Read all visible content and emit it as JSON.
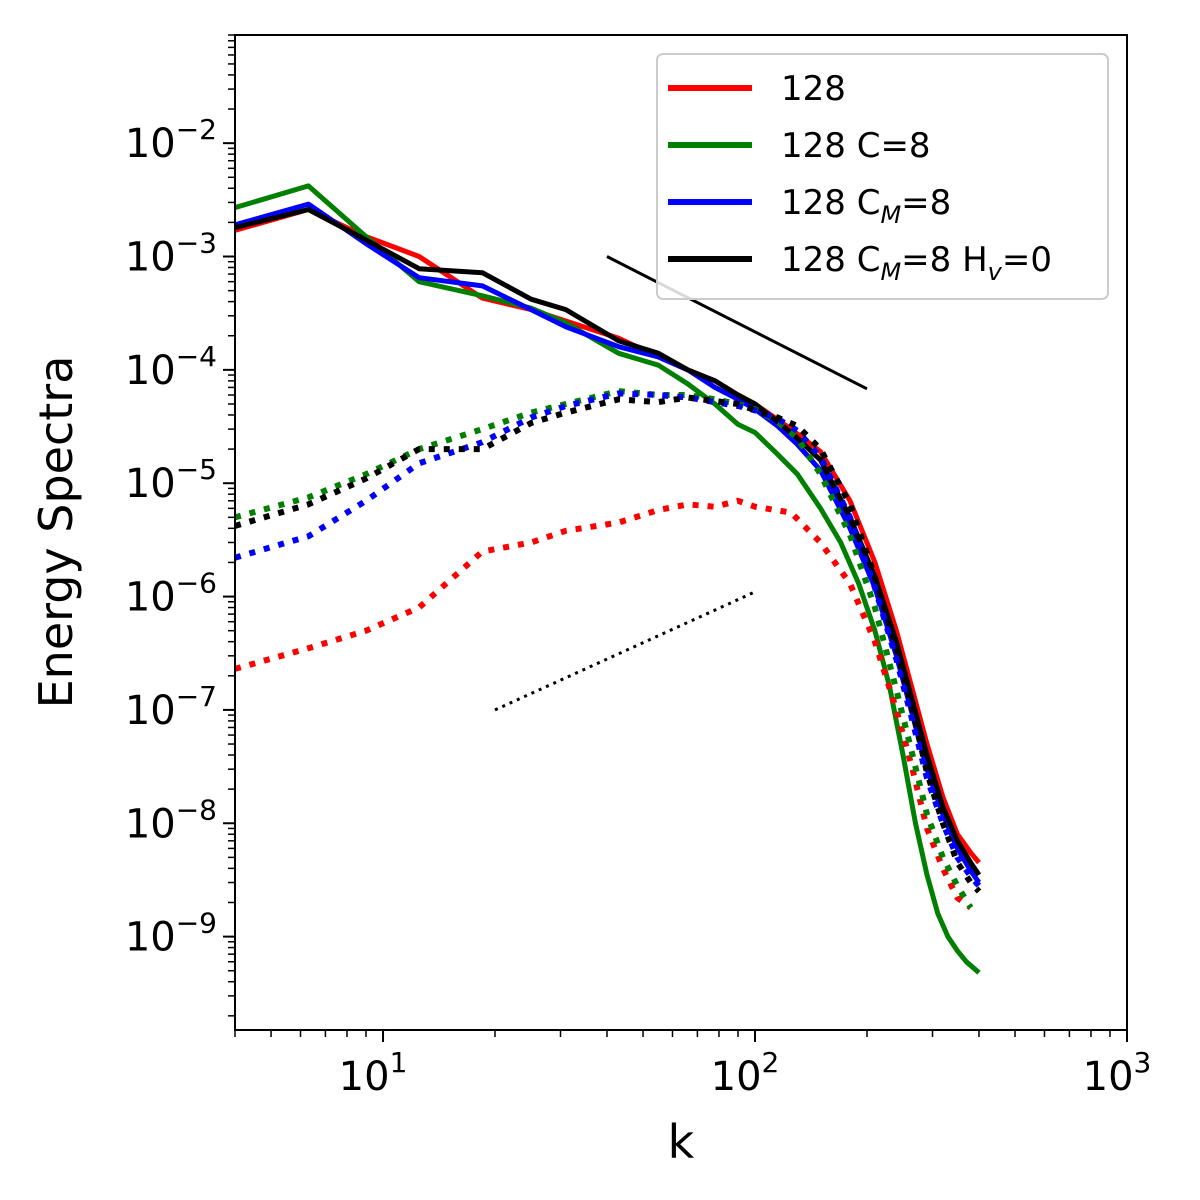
{
  "chart_data": {
    "type": "line",
    "xscale": "log",
    "yscale": "log",
    "xlabel": "k",
    "ylabel": "Energy Spectra",
    "xlim": [
      4,
      1000
    ],
    "ylim": [
      1.5e-10,
      0.09
    ],
    "legend_position": "top-right",
    "x_ticks": [
      {
        "value": 10,
        "base": "10",
        "exp": "1"
      },
      {
        "value": 100,
        "base": "10",
        "exp": "2"
      },
      {
        "value": 1000,
        "base": "10",
        "exp": "3"
      }
    ],
    "y_ticks": [
      {
        "value": 1e-09,
        "base": "10",
        "exp": "−9"
      },
      {
        "value": 1e-08,
        "base": "10",
        "exp": "−8"
      },
      {
        "value": 1e-07,
        "base": "10",
        "exp": "−7"
      },
      {
        "value": 1e-06,
        "base": "10",
        "exp": "−6"
      },
      {
        "value": 1e-05,
        "base": "10",
        "exp": "−5"
      },
      {
        "value": 0.0001,
        "base": "10",
        "exp": "−4"
      },
      {
        "value": 0.001,
        "base": "10",
        "exp": "−3"
      },
      {
        "value": 0.01,
        "base": "10",
        "exp": "−2"
      }
    ],
    "legend": [
      {
        "label": "128",
        "sub": "",
        "suffix": "",
        "color": "#ff0000"
      },
      {
        "label": "128 C=8",
        "sub": "",
        "suffix": "",
        "color": "#008000"
      },
      {
        "label": "128 C",
        "sub": "M",
        "suffix": "=8",
        "color": "#0000ff"
      },
      {
        "label": "128 C",
        "sub": "M",
        "suffix": "=8 H",
        "sub2": "v",
        "suffix2": "=0",
        "color": "#000000"
      }
    ],
    "series": [
      {
        "name": "128",
        "color": "#ff0000",
        "style": "solid",
        "x": [
          4,
          6.3,
          9,
          12.5,
          18.5,
          25,
          31,
          43,
          55,
          66,
          78,
          90,
          100,
          125,
          150,
          180,
          210,
          240,
          265,
          290,
          320,
          350,
          380,
          400
        ],
        "y": [
          0.0017,
          0.0026,
          0.0015,
          0.001,
          0.00043,
          0.00034,
          0.00027,
          0.00019,
          0.00013,
          0.0001,
          8e-05,
          6e-05,
          5e-05,
          3e-05,
          1.9e-05,
          7e-06,
          2e-06,
          5e-07,
          1.5e-07,
          5e-08,
          1.7e-08,
          8e-09,
          5.5e-09,
          4.5e-09
        ]
      },
      {
        "name": "128 C=8",
        "color": "#008000",
        "style": "solid",
        "x": [
          4,
          6.3,
          9,
          12.5,
          18.5,
          25,
          31,
          43,
          55,
          66,
          78,
          90,
          100,
          115,
          130,
          150,
          170,
          190,
          210,
          230,
          250,
          270,
          290,
          310,
          330,
          350,
          370,
          400
        ],
        "y": [
          0.0027,
          0.0042,
          0.0015,
          0.0006,
          0.00045,
          0.00035,
          0.00026,
          0.00014,
          0.00011,
          7.5e-05,
          5e-05,
          3.3e-05,
          2.8e-05,
          1.8e-05,
          1.2e-05,
          6e-06,
          3e-06,
          1.3e-06,
          5e-07,
          1.6e-07,
          4e-08,
          1e-08,
          3.5e-09,
          1.6e-09,
          1e-09,
          7.5e-10,
          6e-10,
          4.8e-10
        ]
      },
      {
        "name": "128 C_M=8",
        "color": "#0000ff",
        "style": "solid",
        "x": [
          4,
          6.3,
          9,
          12.5,
          18.5,
          25,
          31,
          43,
          55,
          66,
          78,
          90,
          100,
          115,
          130,
          150,
          180,
          210,
          240,
          265,
          290,
          320,
          350,
          380,
          400
        ],
        "y": [
          0.0019,
          0.0029,
          0.0013,
          0.00065,
          0.00055,
          0.00034,
          0.00024,
          0.00016,
          0.00013,
          0.0001,
          7e-05,
          5.5e-05,
          4.5e-05,
          3.2e-05,
          2.2e-05,
          1.3e-05,
          4e-06,
          1.2e-06,
          3e-07,
          9e-08,
          3e-08,
          1.2e-08,
          6e-09,
          3.8e-09,
          3e-09
        ]
      },
      {
        "name": "128 C_M=8 H_v=0",
        "color": "#000000",
        "style": "solid",
        "x": [
          4,
          6.3,
          9,
          12.5,
          18.5,
          25,
          31,
          43,
          55,
          66,
          78,
          90,
          100,
          115,
          130,
          150,
          180,
          210,
          240,
          265,
          290,
          320,
          350,
          380,
          400
        ],
        "y": [
          0.0018,
          0.0026,
          0.0014,
          0.00078,
          0.00072,
          0.00042,
          0.00034,
          0.00018,
          0.00014,
          0.0001,
          8e-05,
          6e-05,
          5e-05,
          3.5e-05,
          2.5e-05,
          1.6e-05,
          5e-06,
          1.5e-06,
          4e-07,
          1.2e-07,
          4e-08,
          1.4e-08,
          7e-09,
          4.5e-09,
          3.5e-09
        ]
      },
      {
        "name": "128 (dotted)",
        "color": "#ff0000",
        "style": "dotted",
        "x": [
          4,
          6.3,
          9,
          12.5,
          18.5,
          25,
          31,
          43,
          55,
          66,
          78,
          90,
          100,
          125,
          150,
          180,
          210,
          240,
          265,
          290,
          320,
          350,
          380
        ],
        "y": [
          2.3e-07,
          3.5e-07,
          5e-07,
          8e-07,
          2.5e-06,
          3e-06,
          3.8e-06,
          4.5e-06,
          5.8e-06,
          6.5e-06,
          6.2e-06,
          7e-06,
          6.2e-06,
          5.5e-06,
          3e-06,
          1.3e-06,
          4e-07,
          1e-07,
          3e-08,
          9e-09,
          4e-09,
          2.2e-09,
          1.8e-09
        ]
      },
      {
        "name": "128 C=8 (dotted)",
        "color": "#008000",
        "style": "dotted",
        "x": [
          4,
          6.3,
          9,
          12.5,
          18.5,
          25,
          31,
          43,
          55,
          66,
          78,
          90,
          100,
          115,
          130,
          150,
          180,
          210,
          240,
          265,
          290,
          320,
          350,
          380
        ],
        "y": [
          5e-06,
          7.5e-06,
          1.2e-05,
          2e-05,
          3e-05,
          4.2e-05,
          5e-05,
          6.5e-05,
          6e-05,
          6e-05,
          5.5e-05,
          5e-05,
          4.5e-05,
          3.5e-05,
          2.5e-05,
          1.2e-05,
          3.5e-06,
          8e-07,
          1.5e-07,
          4e-08,
          1.2e-08,
          5e-09,
          2.8e-09,
          1.8e-09
        ]
      },
      {
        "name": "128 C_M=8 (dotted)",
        "color": "#0000ff",
        "style": "dotted",
        "x": [
          4,
          6.3,
          9,
          12.5,
          18.5,
          25,
          31,
          43,
          55,
          66,
          78,
          90,
          100,
          115,
          130,
          150,
          180,
          210,
          240,
          265,
          290,
          320,
          350,
          380,
          400
        ],
        "y": [
          2.2e-06,
          3.4e-06,
          7e-06,
          1.5e-05,
          2.3e-05,
          3.8e-05,
          4.8e-05,
          6.2e-05,
          6e-05,
          5.7e-05,
          5.2e-05,
          4.8e-05,
          4.4e-05,
          3.7e-05,
          2.9e-05,
          1.7e-05,
          5e-06,
          1.2e-06,
          2.8e-07,
          8e-08,
          2.5e-08,
          1e-08,
          5e-09,
          3.4e-09,
          2.8e-09
        ]
      },
      {
        "name": "128 C_M=8 H_v=0 (dotted)",
        "color": "#000000",
        "style": "dotted",
        "x": [
          4,
          6.3,
          9,
          12.5,
          18.5,
          25,
          31,
          43,
          55,
          66,
          78,
          90,
          100,
          115,
          130,
          150,
          180,
          210,
          240,
          265,
          290,
          320,
          350,
          380,
          400
        ],
        "y": [
          4.2e-06,
          6.5e-06,
          1.1e-05,
          2e-05,
          2e-05,
          3.4e-05,
          4.2e-05,
          5.5e-05,
          5.2e-05,
          5.7e-05,
          5.3e-05,
          5e-05,
          4.4e-05,
          3.8e-05,
          3.2e-05,
          2e-05,
          6.5e-06,
          1.5e-06,
          3.5e-07,
          1e-07,
          2.8e-08,
          1e-08,
          4.5e-09,
          3e-09,
          2.5e-09
        ]
      }
    ],
    "reference_lines": [
      {
        "name": "slope-reference-solid",
        "style": "solid",
        "x": [
          40,
          200
        ],
        "y": [
          0.001,
          6.8e-05
        ]
      },
      {
        "name": "slope-reference-dotted",
        "style": "dotted",
        "x": [
          20,
          100
        ],
        "y": [
          1e-07,
          1.1e-06
        ]
      }
    ]
  }
}
